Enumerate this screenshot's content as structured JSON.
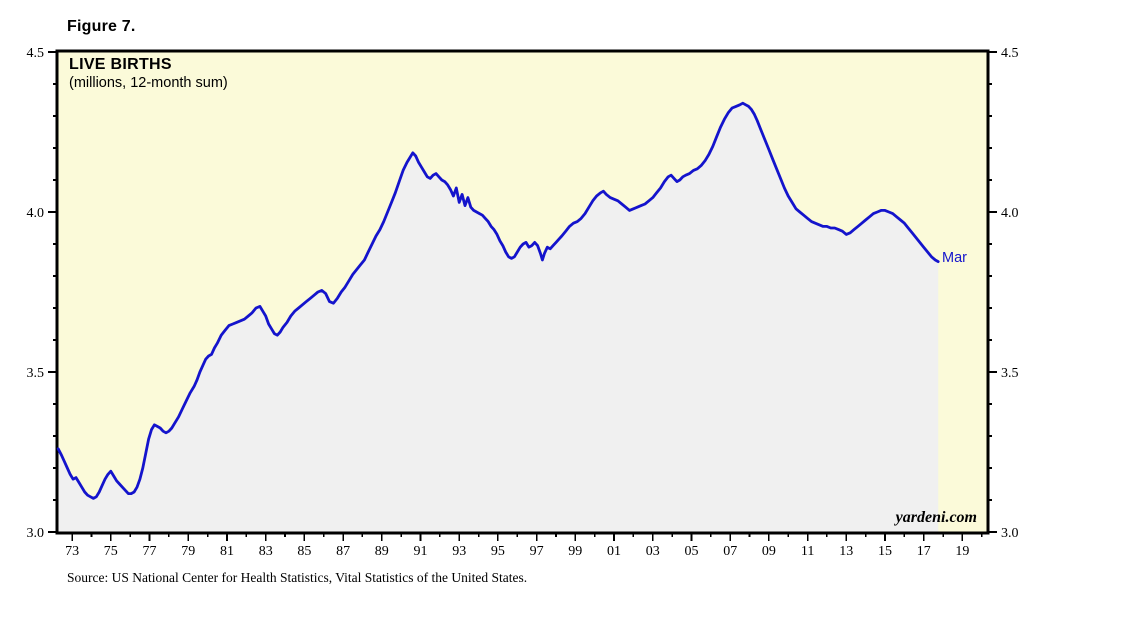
{
  "figure": {
    "label": "Figure 7."
  },
  "watermark": {
    "text": "yardeni.com"
  },
  "source": {
    "text": "Source: US National Center for Health Statistics, Vital Statistics of the United States."
  },
  "chart_data": {
    "type": "area",
    "title": "LIVE BIRTHS",
    "subtitle": "(millions, 12-month sum)",
    "end_label": "Mar",
    "x_range": [
      1972.77,
      2020.77
    ],
    "y_range": [
      3.0,
      4.5
    ],
    "y_major_ticks": [
      {
        "v": 3.0,
        "label": "3.0"
      },
      {
        "v": 3.5,
        "label": "3.5"
      },
      {
        "v": 4.0,
        "label": "4.0"
      },
      {
        "v": 4.5,
        "label": "4.5"
      }
    ],
    "y_minor_step": 0.1,
    "x_tick_year_start": 1973,
    "x_tick_year_end": 2020,
    "x_tick_offset": 0.5,
    "x_major_labels": [
      "73",
      "75",
      "77",
      "79",
      "81",
      "83",
      "85",
      "87",
      "89",
      "91",
      "93",
      "95",
      "97",
      "99",
      "01",
      "03",
      "05",
      "07",
      "09",
      "11",
      "13",
      "15",
      "17",
      "19"
    ],
    "grid": false,
    "legend": "none",
    "colors": {
      "line": "#1414CC",
      "area_fill": "#F0F0F0",
      "plot_bg": "#FBFAD9",
      "frame": "#000000",
      "end_label": "#1414CC"
    },
    "series": [
      {
        "name": "Live births (millions, 12-month sum)",
        "points": [
          [
            1972.78,
            3.26
          ],
          [
            1972.95,
            3.24
          ],
          [
            1973.1,
            3.22
          ],
          [
            1973.25,
            3.2
          ],
          [
            1973.4,
            3.18
          ],
          [
            1973.55,
            3.165
          ],
          [
            1973.7,
            3.17
          ],
          [
            1973.85,
            3.155
          ],
          [
            1974.0,
            3.14
          ],
          [
            1974.15,
            3.125
          ],
          [
            1974.3,
            3.115
          ],
          [
            1974.45,
            3.11
          ],
          [
            1974.6,
            3.105
          ],
          [
            1974.75,
            3.11
          ],
          [
            1974.9,
            3.125
          ],
          [
            1975.05,
            3.145
          ],
          [
            1975.2,
            3.165
          ],
          [
            1975.35,
            3.18
          ],
          [
            1975.5,
            3.19
          ],
          [
            1975.65,
            3.175
          ],
          [
            1975.8,
            3.16
          ],
          [
            1975.95,
            3.15
          ],
          [
            1976.1,
            3.14
          ],
          [
            1976.25,
            3.13
          ],
          [
            1976.4,
            3.12
          ],
          [
            1976.55,
            3.12
          ],
          [
            1976.7,
            3.125
          ],
          [
            1976.85,
            3.14
          ],
          [
            1977.0,
            3.165
          ],
          [
            1977.15,
            3.2
          ],
          [
            1977.3,
            3.245
          ],
          [
            1977.45,
            3.29
          ],
          [
            1977.6,
            3.32
          ],
          [
            1977.75,
            3.335
          ],
          [
            1977.9,
            3.33
          ],
          [
            1978.05,
            3.325
          ],
          [
            1978.2,
            3.315
          ],
          [
            1978.35,
            3.31
          ],
          [
            1978.5,
            3.315
          ],
          [
            1978.65,
            3.325
          ],
          [
            1978.8,
            3.34
          ],
          [
            1979.0,
            3.36
          ],
          [
            1979.2,
            3.385
          ],
          [
            1979.4,
            3.41
          ],
          [
            1979.6,
            3.435
          ],
          [
            1979.8,
            3.455
          ],
          [
            1979.95,
            3.475
          ],
          [
            1980.1,
            3.5
          ],
          [
            1980.25,
            3.52
          ],
          [
            1980.4,
            3.54
          ],
          [
            1980.55,
            3.55
          ],
          [
            1980.7,
            3.555
          ],
          [
            1980.85,
            3.575
          ],
          [
            1981.0,
            3.59
          ],
          [
            1981.2,
            3.615
          ],
          [
            1981.4,
            3.63
          ],
          [
            1981.6,
            3.645
          ],
          [
            1981.8,
            3.65
          ],
          [
            1982.0,
            3.655
          ],
          [
            1982.2,
            3.66
          ],
          [
            1982.4,
            3.665
          ],
          [
            1982.6,
            3.675
          ],
          [
            1982.8,
            3.685
          ],
          [
            1983.0,
            3.7
          ],
          [
            1983.2,
            3.705
          ],
          [
            1983.35,
            3.69
          ],
          [
            1983.5,
            3.675
          ],
          [
            1983.65,
            3.65
          ],
          [
            1983.8,
            3.635
          ],
          [
            1983.95,
            3.62
          ],
          [
            1984.1,
            3.615
          ],
          [
            1984.25,
            3.625
          ],
          [
            1984.4,
            3.64
          ],
          [
            1984.6,
            3.655
          ],
          [
            1984.8,
            3.675
          ],
          [
            1985.0,
            3.69
          ],
          [
            1985.2,
            3.7
          ],
          [
            1985.4,
            3.71
          ],
          [
            1985.6,
            3.72
          ],
          [
            1985.8,
            3.73
          ],
          [
            1986.0,
            3.74
          ],
          [
            1986.2,
            3.75
          ],
          [
            1986.4,
            3.755
          ],
          [
            1986.6,
            3.745
          ],
          [
            1986.8,
            3.72
          ],
          [
            1987.0,
            3.715
          ],
          [
            1987.2,
            3.73
          ],
          [
            1987.4,
            3.75
          ],
          [
            1987.6,
            3.765
          ],
          [
            1987.8,
            3.785
          ],
          [
            1988.0,
            3.805
          ],
          [
            1988.2,
            3.82
          ],
          [
            1988.4,
            3.835
          ],
          [
            1988.6,
            3.85
          ],
          [
            1988.8,
            3.875
          ],
          [
            1989.0,
            3.9
          ],
          [
            1989.2,
            3.925
          ],
          [
            1989.4,
            3.945
          ],
          [
            1989.6,
            3.97
          ],
          [
            1989.8,
            4.0
          ],
          [
            1990.0,
            4.03
          ],
          [
            1990.2,
            4.06
          ],
          [
            1990.4,
            4.095
          ],
          [
            1990.6,
            4.13
          ],
          [
            1990.8,
            4.155
          ],
          [
            1990.95,
            4.17
          ],
          [
            1991.1,
            4.185
          ],
          [
            1991.25,
            4.175
          ],
          [
            1991.4,
            4.155
          ],
          [
            1991.55,
            4.14
          ],
          [
            1991.7,
            4.125
          ],
          [
            1991.85,
            4.11
          ],
          [
            1992.0,
            4.105
          ],
          [
            1992.15,
            4.115
          ],
          [
            1992.3,
            4.12
          ],
          [
            1992.45,
            4.11
          ],
          [
            1992.6,
            4.1
          ],
          [
            1992.75,
            4.095
          ],
          [
            1992.9,
            4.085
          ],
          [
            1993.05,
            4.07
          ],
          [
            1993.2,
            4.05
          ],
          [
            1993.35,
            4.075
          ],
          [
            1993.5,
            4.03
          ],
          [
            1993.65,
            4.055
          ],
          [
            1993.8,
            4.02
          ],
          [
            1993.95,
            4.045
          ],
          [
            1994.1,
            4.015
          ],
          [
            1994.25,
            4.005
          ],
          [
            1994.4,
            4.0
          ],
          [
            1994.55,
            3.995
          ],
          [
            1994.7,
            3.99
          ],
          [
            1994.85,
            3.98
          ],
          [
            1995.0,
            3.97
          ],
          [
            1995.15,
            3.955
          ],
          [
            1995.3,
            3.945
          ],
          [
            1995.45,
            3.93
          ],
          [
            1995.6,
            3.91
          ],
          [
            1995.75,
            3.895
          ],
          [
            1995.9,
            3.875
          ],
          [
            1996.05,
            3.86
          ],
          [
            1996.2,
            3.855
          ],
          [
            1996.35,
            3.86
          ],
          [
            1996.5,
            3.875
          ],
          [
            1996.65,
            3.89
          ],
          [
            1996.8,
            3.9
          ],
          [
            1996.95,
            3.905
          ],
          [
            1997.1,
            3.89
          ],
          [
            1997.25,
            3.895
          ],
          [
            1997.4,
            3.905
          ],
          [
            1997.55,
            3.895
          ],
          [
            1997.7,
            3.87
          ],
          [
            1997.8,
            3.85
          ],
          [
            1997.9,
            3.87
          ],
          [
            1998.05,
            3.89
          ],
          [
            1998.2,
            3.885
          ],
          [
            1998.35,
            3.895
          ],
          [
            1998.5,
            3.905
          ],
          [
            1998.65,
            3.915
          ],
          [
            1998.8,
            3.925
          ],
          [
            1999.0,
            3.94
          ],
          [
            1999.2,
            3.955
          ],
          [
            1999.4,
            3.965
          ],
          [
            1999.6,
            3.97
          ],
          [
            1999.8,
            3.98
          ],
          [
            2000.0,
            3.995
          ],
          [
            2000.2,
            4.015
          ],
          [
            2000.4,
            4.035
          ],
          [
            2000.6,
            4.05
          ],
          [
            2000.8,
            4.06
          ],
          [
            2000.95,
            4.065
          ],
          [
            2001.1,
            4.055
          ],
          [
            2001.3,
            4.045
          ],
          [
            2001.5,
            4.04
          ],
          [
            2001.7,
            4.035
          ],
          [
            2001.9,
            4.025
          ],
          [
            2002.1,
            4.015
          ],
          [
            2002.3,
            4.005
          ],
          [
            2002.5,
            4.01
          ],
          [
            2002.7,
            4.015
          ],
          [
            2002.9,
            4.02
          ],
          [
            2003.1,
            4.025
          ],
          [
            2003.3,
            4.035
          ],
          [
            2003.5,
            4.045
          ],
          [
            2003.7,
            4.06
          ],
          [
            2003.9,
            4.075
          ],
          [
            2004.1,
            4.095
          ],
          [
            2004.3,
            4.11
          ],
          [
            2004.45,
            4.115
          ],
          [
            2004.6,
            4.105
          ],
          [
            2004.75,
            4.095
          ],
          [
            2004.9,
            4.1
          ],
          [
            2005.05,
            4.11
          ],
          [
            2005.2,
            4.115
          ],
          [
            2005.4,
            4.12
          ],
          [
            2005.6,
            4.13
          ],
          [
            2005.8,
            4.135
          ],
          [
            2006.0,
            4.145
          ],
          [
            2006.2,
            4.16
          ],
          [
            2006.4,
            4.18
          ],
          [
            2006.6,
            4.205
          ],
          [
            2006.8,
            4.235
          ],
          [
            2007.0,
            4.265
          ],
          [
            2007.2,
            4.29
          ],
          [
            2007.4,
            4.31
          ],
          [
            2007.6,
            4.325
          ],
          [
            2007.8,
            4.33
          ],
          [
            2008.0,
            4.335
          ],
          [
            2008.15,
            4.34
          ],
          [
            2008.3,
            4.335
          ],
          [
            2008.45,
            4.33
          ],
          [
            2008.6,
            4.32
          ],
          [
            2008.75,
            4.305
          ],
          [
            2008.9,
            4.285
          ],
          [
            2009.1,
            4.255
          ],
          [
            2009.3,
            4.225
          ],
          [
            2009.5,
            4.195
          ],
          [
            2009.7,
            4.165
          ],
          [
            2009.9,
            4.135
          ],
          [
            2010.1,
            4.105
          ],
          [
            2010.3,
            4.075
          ],
          [
            2010.5,
            4.05
          ],
          [
            2010.7,
            4.03
          ],
          [
            2010.9,
            4.01
          ],
          [
            2011.1,
            4.0
          ],
          [
            2011.3,
            3.99
          ],
          [
            2011.5,
            3.98
          ],
          [
            2011.7,
            3.97
          ],
          [
            2011.9,
            3.965
          ],
          [
            2012.1,
            3.96
          ],
          [
            2012.3,
            3.955
          ],
          [
            2012.5,
            3.955
          ],
          [
            2012.7,
            3.95
          ],
          [
            2012.9,
            3.95
          ],
          [
            2013.1,
            3.945
          ],
          [
            2013.3,
            3.94
          ],
          [
            2013.5,
            3.93
          ],
          [
            2013.7,
            3.935
          ],
          [
            2013.9,
            3.945
          ],
          [
            2014.1,
            3.955
          ],
          [
            2014.3,
            3.965
          ],
          [
            2014.5,
            3.975
          ],
          [
            2014.7,
            3.985
          ],
          [
            2014.9,
            3.995
          ],
          [
            2015.1,
            4.0
          ],
          [
            2015.3,
            4.005
          ],
          [
            2015.5,
            4.005
          ],
          [
            2015.7,
            4.0
          ],
          [
            2015.9,
            3.995
          ],
          [
            2016.1,
            3.985
          ],
          [
            2016.3,
            3.975
          ],
          [
            2016.5,
            3.965
          ],
          [
            2016.7,
            3.95
          ],
          [
            2016.9,
            3.935
          ],
          [
            2017.1,
            3.92
          ],
          [
            2017.3,
            3.905
          ],
          [
            2017.5,
            3.89
          ],
          [
            2017.7,
            3.875
          ],
          [
            2017.9,
            3.86
          ],
          [
            2018.1,
            3.85
          ],
          [
            2018.25,
            3.845
          ]
        ]
      }
    ]
  }
}
